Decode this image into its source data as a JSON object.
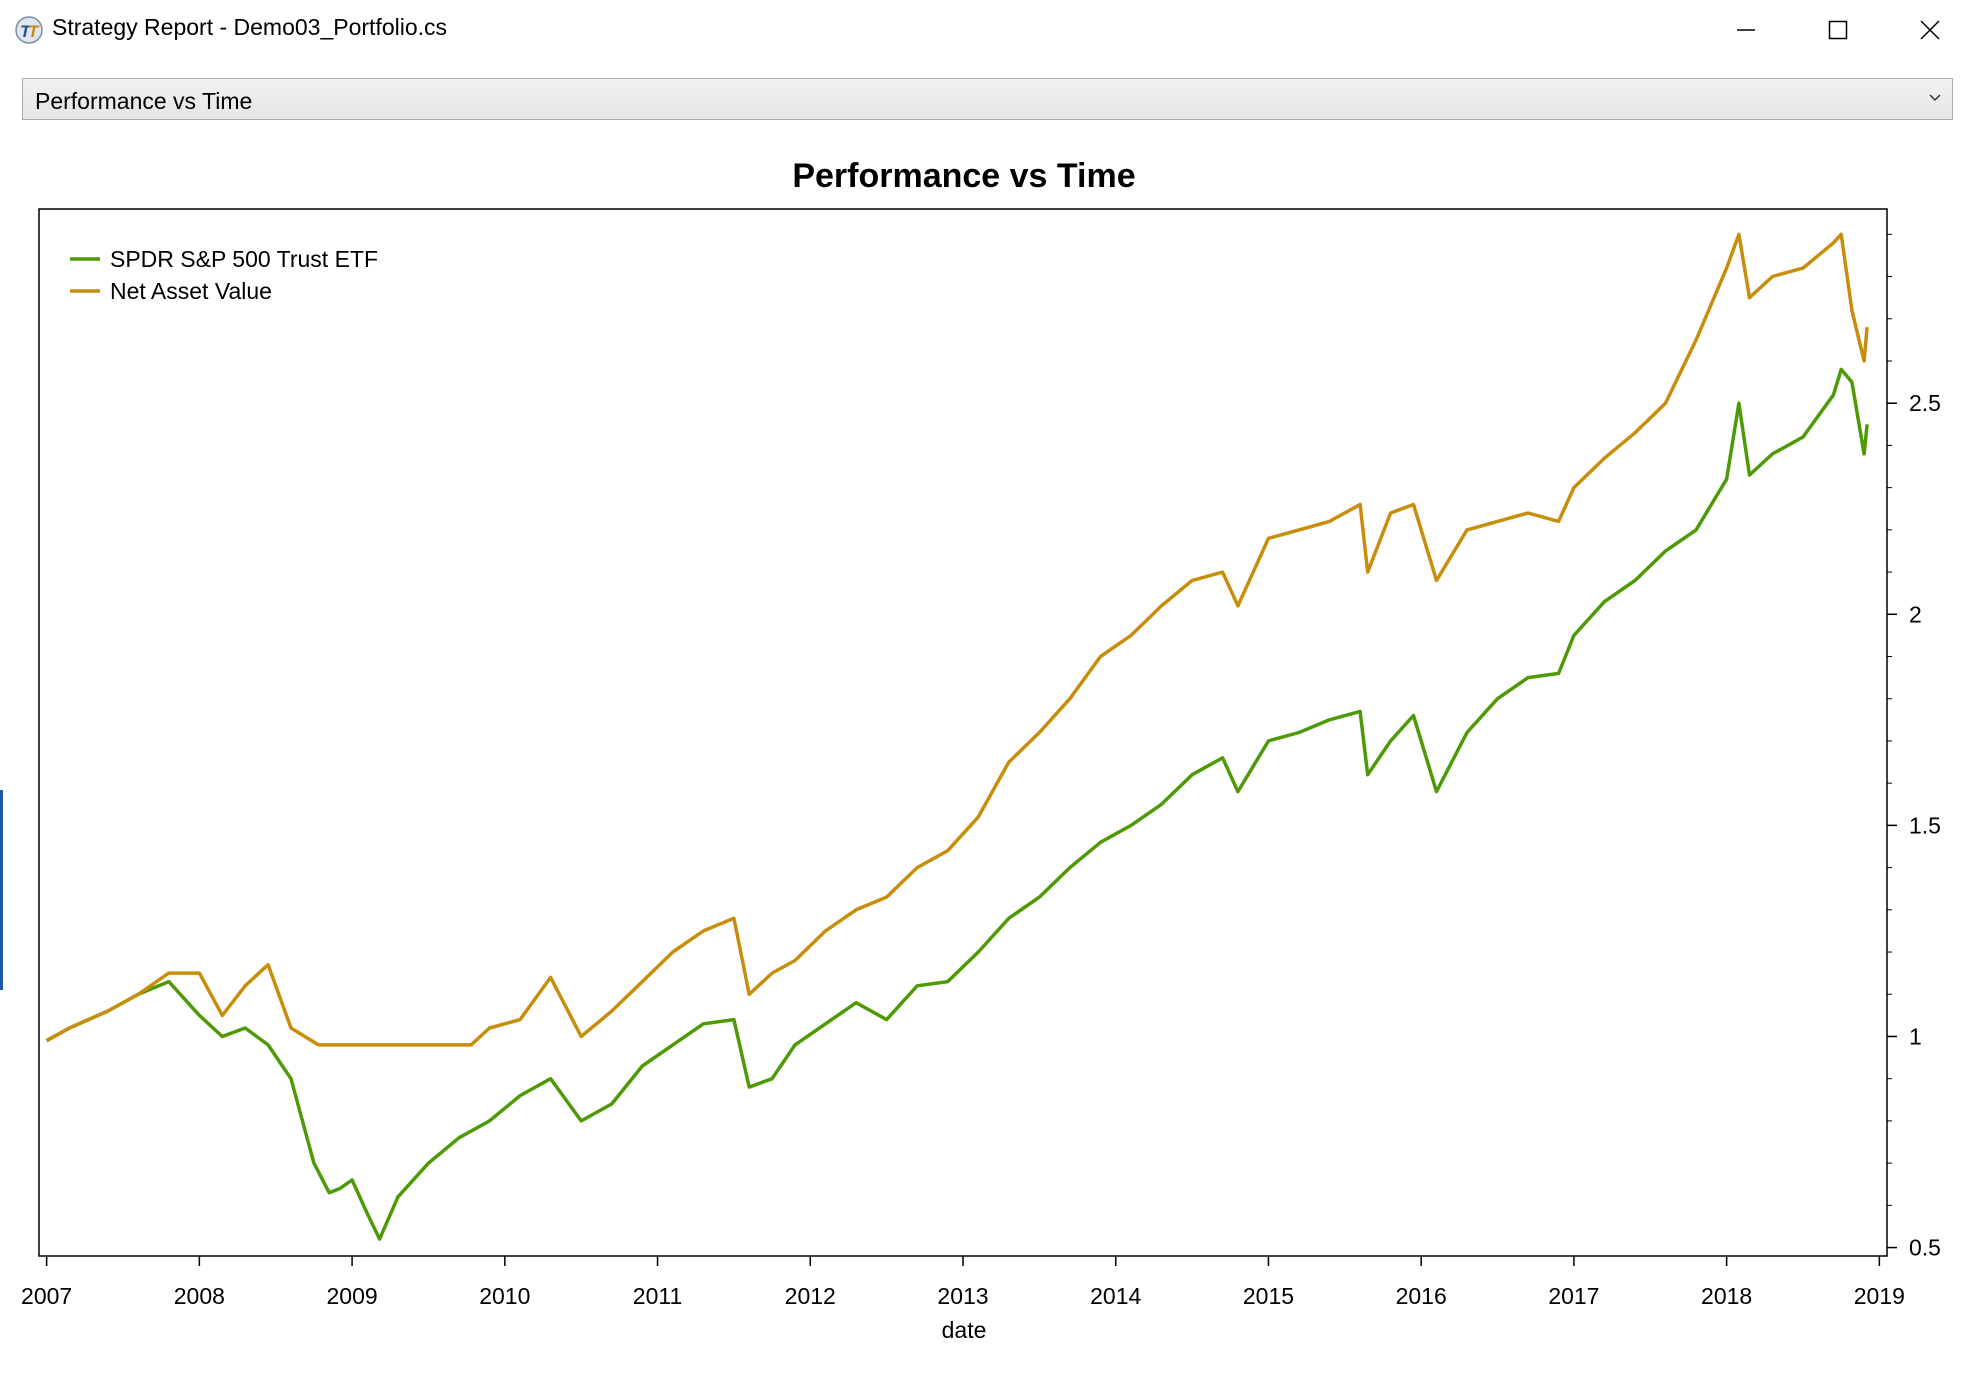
{
  "window": {
    "title": "Strategy Report - Demo03_Portfolio.cs",
    "icon": "turingtrader-logo-icon",
    "controls": [
      "minimize-icon",
      "maximize-icon",
      "close-icon"
    ]
  },
  "selector": {
    "selected": "Performance vs Time",
    "icon": "chevron-down-icon"
  },
  "colors": {
    "spy": "#4e9a06",
    "nav": "#c98d0c"
  },
  "chart_data": {
    "type": "line",
    "title": "Performance vs Time",
    "xlabel": "date",
    "ylabel": "",
    "xlim": [
      2006.95,
      2019.05
    ],
    "ylim": [
      0.48,
      2.96
    ],
    "x_ticks": [
      2007,
      2008,
      2009,
      2010,
      2011,
      2012,
      2013,
      2014,
      2015,
      2016,
      2017,
      2018,
      2019
    ],
    "x_tick_labels": [
      "2007",
      "2008",
      "2009",
      "2010",
      "2011",
      "2012",
      "2013",
      "2014",
      "2015",
      "2016",
      "2017",
      "2018",
      "2019"
    ],
    "y_ticks": [
      0.5,
      1,
      1.5,
      2,
      2.5
    ],
    "y_tick_labels": [
      "0.5",
      "1",
      "1.5",
      "2",
      "2.5"
    ],
    "y_axis_side": "right",
    "legend_position": "top-left",
    "grid": false,
    "series": [
      {
        "name": "SPDR S&P 500 Trust ETF",
        "x": [
          2007.0,
          2007.15,
          2007.4,
          2007.6,
          2007.8,
          2008.0,
          2008.15,
          2008.3,
          2008.45,
          2008.6,
          2008.75,
          2008.85,
          2008.92,
          2009.0,
          2009.1,
          2009.18,
          2009.3,
          2009.5,
          2009.7,
          2009.9,
          2010.1,
          2010.3,
          2010.5,
          2010.7,
          2010.9,
          2011.1,
          2011.3,
          2011.5,
          2011.6,
          2011.75,
          2011.9,
          2012.1,
          2012.3,
          2012.5,
          2012.7,
          2012.9,
          2013.1,
          2013.3,
          2013.5,
          2013.7,
          2013.9,
          2014.1,
          2014.3,
          2014.5,
          2014.7,
          2014.8,
          2015.0,
          2015.2,
          2015.4,
          2015.6,
          2015.65,
          2015.8,
          2015.95,
          2016.1,
          2016.3,
          2016.5,
          2016.7,
          2016.9,
          2017.0,
          2017.2,
          2017.4,
          2017.6,
          2017.8,
          2018.0,
          2018.08,
          2018.15,
          2018.3,
          2018.5,
          2018.7,
          2018.75,
          2018.82,
          2018.9,
          2018.92
        ],
        "y": [
          0.99,
          1.02,
          1.06,
          1.1,
          1.13,
          1.05,
          1.0,
          1.02,
          0.98,
          0.9,
          0.7,
          0.63,
          0.64,
          0.66,
          0.58,
          0.52,
          0.62,
          0.7,
          0.76,
          0.8,
          0.86,
          0.9,
          0.8,
          0.84,
          0.93,
          0.98,
          1.03,
          1.04,
          0.88,
          0.9,
          0.98,
          1.03,
          1.08,
          1.04,
          1.12,
          1.13,
          1.2,
          1.28,
          1.33,
          1.4,
          1.46,
          1.5,
          1.55,
          1.62,
          1.66,
          1.58,
          1.7,
          1.72,
          1.75,
          1.77,
          1.62,
          1.7,
          1.76,
          1.58,
          1.72,
          1.8,
          1.85,
          1.86,
          1.95,
          2.03,
          2.08,
          2.15,
          2.2,
          2.32,
          2.5,
          2.33,
          2.38,
          2.42,
          2.52,
          2.58,
          2.55,
          2.38,
          2.45
        ]
      },
      {
        "name": "Net Asset Value",
        "x": [
          2007.0,
          2007.15,
          2007.4,
          2007.6,
          2007.8,
          2008.0,
          2008.15,
          2008.3,
          2008.45,
          2008.6,
          2008.78,
          2009.0,
          2009.5,
          2009.78,
          2009.9,
          2010.1,
          2010.3,
          2010.5,
          2010.7,
          2010.9,
          2011.1,
          2011.3,
          2011.5,
          2011.6,
          2011.75,
          2011.9,
          2012.1,
          2012.3,
          2012.5,
          2012.7,
          2012.9,
          2013.1,
          2013.3,
          2013.5,
          2013.7,
          2013.9,
          2014.1,
          2014.3,
          2014.5,
          2014.7,
          2014.8,
          2015.0,
          2015.2,
          2015.4,
          2015.6,
          2015.65,
          2015.8,
          2015.95,
          2016.1,
          2016.3,
          2016.5,
          2016.7,
          2016.9,
          2017.0,
          2017.2,
          2017.4,
          2017.6,
          2017.8,
          2018.0,
          2018.08,
          2018.15,
          2018.3,
          2018.5,
          2018.7,
          2018.75,
          2018.82,
          2018.9,
          2018.92
        ],
        "y": [
          0.99,
          1.02,
          1.06,
          1.1,
          1.15,
          1.15,
          1.05,
          1.12,
          1.17,
          1.02,
          0.98,
          0.98,
          0.98,
          0.98,
          1.02,
          1.04,
          1.14,
          1.0,
          1.06,
          1.13,
          1.2,
          1.25,
          1.28,
          1.1,
          1.15,
          1.18,
          1.25,
          1.3,
          1.33,
          1.4,
          1.44,
          1.52,
          1.65,
          1.72,
          1.8,
          1.9,
          1.95,
          2.02,
          2.08,
          2.1,
          2.02,
          2.18,
          2.2,
          2.22,
          2.26,
          2.1,
          2.24,
          2.26,
          2.08,
          2.2,
          2.22,
          2.24,
          2.22,
          2.3,
          2.37,
          2.43,
          2.5,
          2.65,
          2.82,
          2.9,
          2.75,
          2.8,
          2.82,
          2.88,
          2.9,
          2.72,
          2.6,
          2.68
        ]
      }
    ]
  }
}
